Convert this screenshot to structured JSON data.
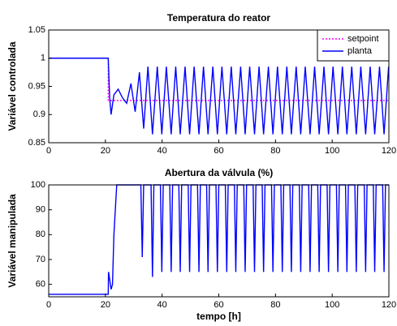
{
  "chart_data": [
    {
      "type": "line",
      "title": "Temperatura do reator",
      "y_label": "Variável controlada",
      "xlim": [
        0,
        120
      ],
      "xticks": [
        0,
        20,
        40,
        60,
        80,
        100,
        120
      ],
      "ylim": [
        0.85,
        1.05
      ],
      "yticks": [
        0.85,
        0.9,
        0.95,
        1,
        1.05
      ],
      "legend": "upper right",
      "series": [
        {
          "name": "setpoint",
          "color": "#ff00ff",
          "style": "dotted",
          "x": [
            0,
            21,
            21,
            120
          ],
          "values": [
            1,
            1,
            0.925,
            0.925
          ]
        },
        {
          "name": "planta",
          "color": "#0000ff",
          "style": "solid",
          "x": [
            0,
            21,
            21.5,
            22,
            23,
            24.5,
            26,
            27.5,
            29,
            30.5,
            32,
            33.5,
            35,
            36.6,
            38.3,
            39.9,
            41.5,
            43.2,
            44.8,
            46.4,
            48.1,
            49.7,
            51.3,
            53.0,
            54.6,
            56.2,
            57.9,
            59.5,
            61.1,
            62.8,
            64.4,
            66.0,
            67.7,
            69.3,
            70.9,
            72.6,
            74.2,
            75.8,
            77.5,
            79.1,
            80.7,
            82.4,
            84.0,
            85.6,
            87.3,
            88.9,
            90.5,
            92.2,
            93.8,
            95.4,
            97.1,
            98.7,
            100.3,
            102.0,
            103.6,
            105.2,
            106.9,
            108.5,
            110.1,
            111.8,
            113.4,
            115.0,
            116.7,
            118.3,
            119.9
          ],
          "values": [
            1,
            1,
            0.93,
            0.9,
            0.935,
            0.945,
            0.93,
            0.92,
            0.955,
            0.905,
            0.975,
            0.875,
            0.985,
            0.865,
            0.985,
            0.865,
            0.985,
            0.865,
            0.985,
            0.865,
            0.985,
            0.865,
            0.985,
            0.865,
            0.985,
            0.865,
            0.985,
            0.865,
            0.985,
            0.865,
            0.985,
            0.865,
            0.985,
            0.865,
            0.985,
            0.865,
            0.985,
            0.865,
            0.985,
            0.865,
            0.985,
            0.865,
            0.985,
            0.865,
            0.985,
            0.865,
            0.985,
            0.865,
            0.985,
            0.865,
            0.985,
            0.865,
            0.985,
            0.865,
            0.985,
            0.865,
            0.985,
            0.865,
            0.985,
            0.865,
            0.985,
            0.865,
            0.985,
            0.865,
            0.985
          ]
        }
      ]
    },
    {
      "type": "line",
      "title": "Abertura da válvula (%)",
      "y_label": "Variável manipulada",
      "x_label": "tempo [h]",
      "xlim": [
        0,
        120
      ],
      "xticks": [
        0,
        20,
        40,
        60,
        80,
        100,
        120
      ],
      "ylim": [
        55,
        100
      ],
      "yticks": [
        60,
        70,
        80,
        90,
        100
      ],
      "series": [
        {
          "color": "#0000ff",
          "style": "solid",
          "x": [
            0,
            21,
            21.1,
            21.5,
            22,
            22.5,
            23,
            24,
            32.5,
            33.0,
            33.5,
            36.1,
            36.6,
            37.1,
            39.4,
            39.9,
            40.4,
            42.7,
            43.2,
            43.7,
            45.9,
            46.4,
            46.9,
            49.2,
            49.7,
            50.2,
            52.5,
            53.0,
            53.5,
            55.7,
            56.2,
            56.7,
            59.0,
            59.5,
            60.0,
            62.3,
            62.8,
            63.3,
            65.5,
            66.0,
            66.5,
            68.8,
            69.3,
            69.8,
            72.1,
            72.6,
            73.1,
            75.3,
            75.8,
            76.3,
            78.6,
            79.1,
            79.6,
            81.9,
            82.4,
            82.9,
            85.1,
            85.6,
            86.1,
            88.4,
            88.9,
            89.4,
            91.7,
            92.2,
            92.7,
            94.9,
            95.4,
            95.9,
            98.2,
            98.7,
            99.2,
            101.5,
            102.0,
            102.5,
            104.7,
            105.2,
            105.7,
            108.0,
            108.5,
            109.0,
            111.3,
            111.8,
            112.3,
            114.5,
            115.0,
            115.5,
            117.8,
            118.3,
            118.8,
            120
          ],
          "values": [
            56,
            56,
            65,
            62,
            58,
            60,
            80,
            100,
            100,
            71,
            100,
            100,
            63,
            100,
            100,
            65,
            100,
            100,
            65,
            100,
            100,
            65,
            100,
            100,
            65,
            100,
            100,
            65,
            100,
            100,
            65,
            100,
            100,
            65,
            100,
            100,
            65,
            100,
            100,
            65,
            100,
            100,
            65,
            100,
            100,
            65,
            100,
            100,
            65,
            100,
            100,
            65,
            100,
            100,
            65,
            100,
            100,
            65,
            100,
            100,
            65,
            100,
            100,
            65,
            100,
            100,
            65,
            100,
            100,
            65,
            100,
            100,
            65,
            100,
            100,
            65,
            100,
            100,
            65,
            100,
            100,
            65,
            100,
            100,
            65,
            100,
            100,
            65,
            100,
            100
          ]
        }
      ]
    }
  ]
}
